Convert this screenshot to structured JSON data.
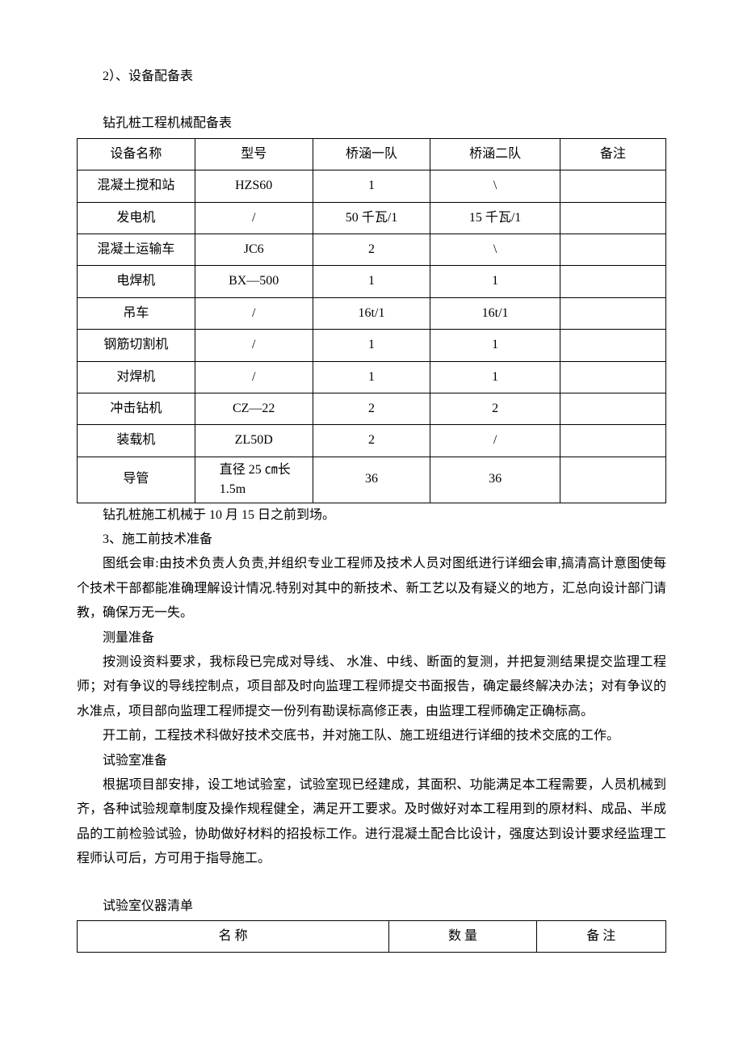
{
  "doc": {
    "heading1": "2）、设备配备表",
    "table1_caption": "钻孔桩工程机械配备表",
    "table1": {
      "headers": [
        "设备名称",
        "型号",
        "桥涵一队",
        "桥涵二队",
        "备注"
      ],
      "rows": [
        [
          "混凝土搅和站",
          "HZS60",
          "1",
          "\\",
          ""
        ],
        [
          "发电机",
          "/",
          "50 千瓦/1",
          "15 千瓦/1",
          ""
        ],
        [
          "混凝土运输车",
          "JC6",
          "2",
          "\\",
          ""
        ],
        [
          "电焊机",
          "BX—500",
          "1",
          "1",
          ""
        ],
        [
          "吊车",
          "/",
          "16t/1",
          "16t/1",
          ""
        ],
        [
          "钢筋切割机",
          "/",
          "1",
          "1",
          ""
        ],
        [
          "对焊机",
          "/",
          "1",
          "1",
          ""
        ],
        [
          "冲击钻机",
          "CZ—22",
          "2",
          "2",
          ""
        ],
        [
          "装载机",
          "ZL50D",
          "2",
          "/",
          ""
        ],
        [
          "导管",
          "直径 25 ㎝长 1.5m",
          "36",
          "36",
          ""
        ]
      ]
    },
    "p1": "钻孔桩施工机械于 10 月 15 日之前到场。",
    "heading2": "3、施工前技术准备",
    "p2": "图纸会审:由技术负责人负责,并组织专业工程师及技术人员对图纸进行详细会审,搞清高计意图使每个技术干部都能准确理解设计情况.特别对其中的新技术、新工艺以及有疑义的地方，汇总向设计部门请教，确保万无一失。",
    "h_measure": "测量准备",
    "p3": "按测设资料要求，我标段已完成对导线、 水准、中线、断面的复测，并把复测结果提交监理工程师；对有争议的导线控制点，项目部及时向监理工程师提交书面报告，确定最终解决办法；对有争议的水准点，项目部向监理工程师提交一份列有勘误标高修正表，由监理工程师确定正确标高。",
    "p4": "开工前，工程技术科做好技术交底书，并对施工队、施工班组进行详细的技术交底的工作。",
    "h_lab": "试验室准备",
    "p5": "根据项目部安排，设工地试验室，试验室现已经建成，其面积、功能满足本工程需要，人员机械到齐，各种试验规章制度及操作规程健全，满足开工要求。及时做好对本工程用到的原材料、成品、半成品的工前检验试验，协助做好材料的招投标工作。进行混凝土配合比设计，强度达到设计要求经监理工程师认可后，方可用于指导施工。",
    "table2_caption": "试验室仪器清单",
    "table2": {
      "headers": [
        "名    称",
        "数 量",
        "备 注"
      ]
    },
    "style": {
      "font_size_body": 16,
      "text_color": "#000000",
      "background": "#ffffff",
      "border_color": "#000000"
    }
  }
}
